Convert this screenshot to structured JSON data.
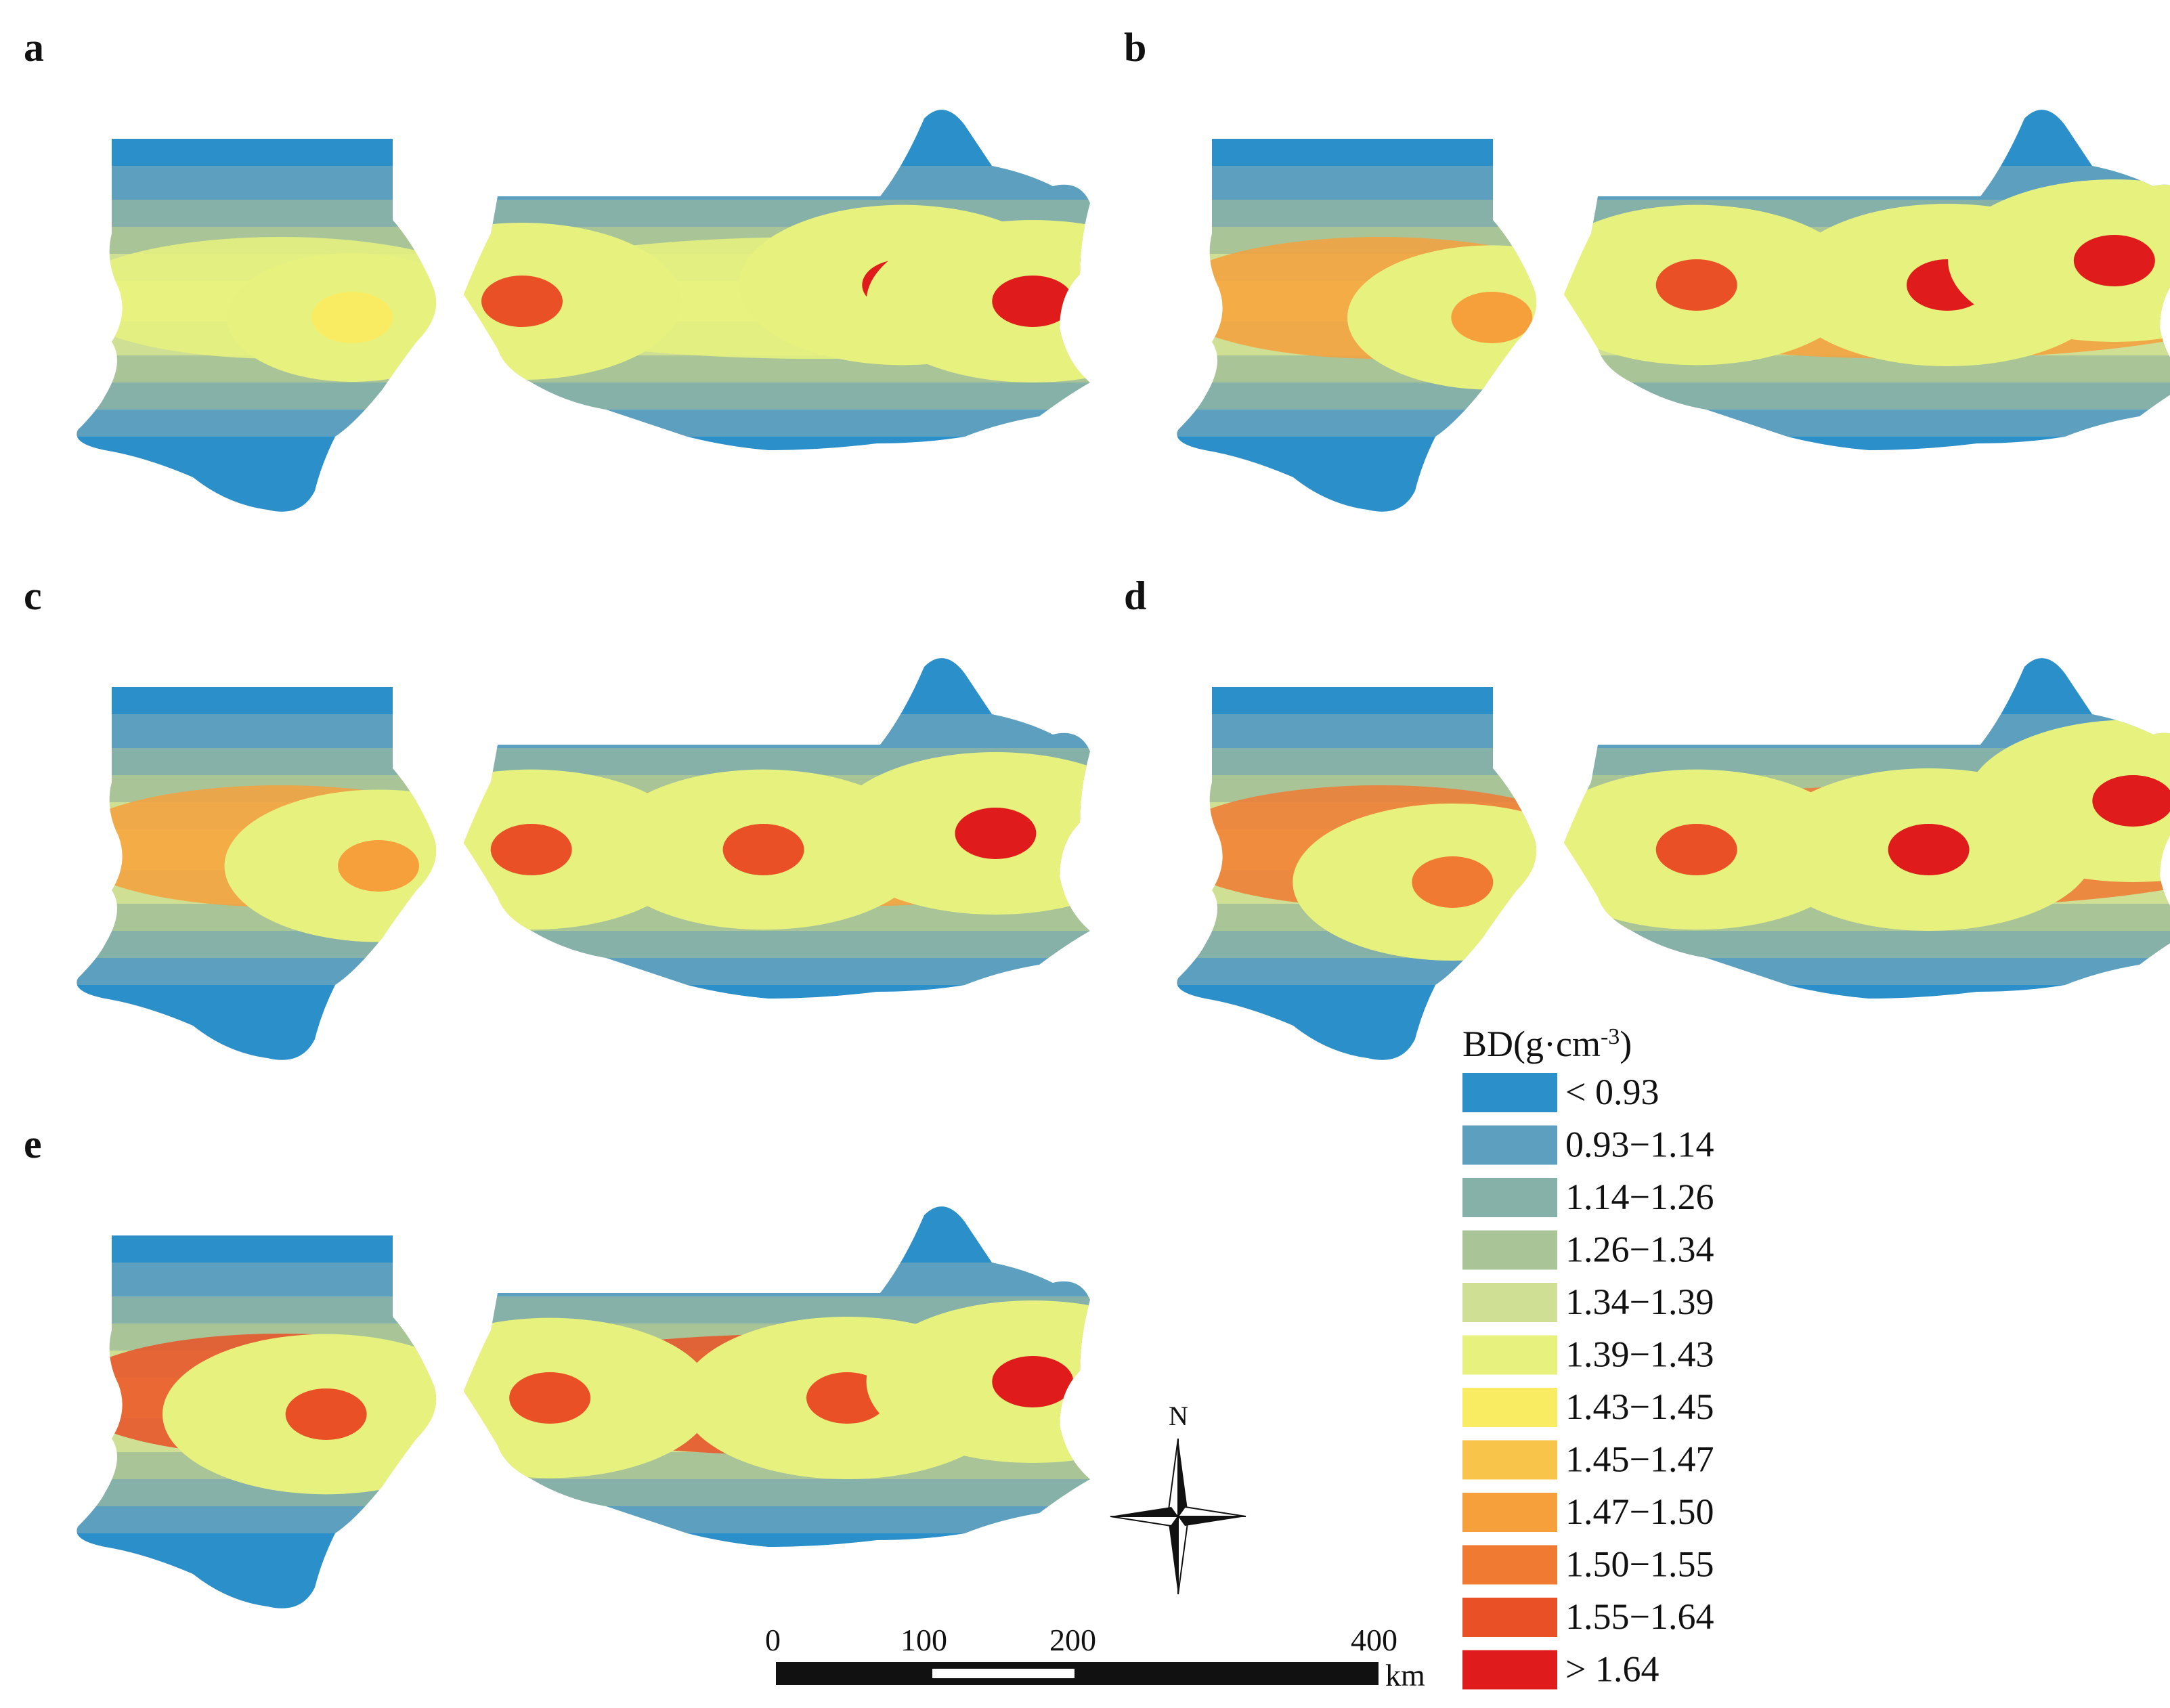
{
  "panels": [
    {
      "label": "a",
      "hotspots": [
        {
          "rx": 0.37,
          "ry": 0.2,
          "bin": 9,
          "core": 11
        },
        {
          "rx": 0.78,
          "ry": 0.18,
          "bin": 10,
          "core": 12
        },
        {
          "rx": 0.92,
          "ry": 0.2,
          "bin": 11,
          "core": 12
        },
        {
          "rx": 0.22,
          "ry": 0.22,
          "bin": 6,
          "core": 7
        }
      ],
      "band": 6
    },
    {
      "label": "b",
      "hotspots": [
        {
          "rx": 0.45,
          "ry": 0.18,
          "bin": 10,
          "core": 11
        },
        {
          "rx": 0.72,
          "ry": 0.18,
          "bin": 11,
          "core": 12
        },
        {
          "rx": 0.9,
          "ry": 0.15,
          "bin": 11,
          "core": 12
        },
        {
          "rx": 0.25,
          "ry": 0.22,
          "bin": 7,
          "core": 9
        }
      ],
      "band": 9
    },
    {
      "label": "c",
      "hotspots": [
        {
          "rx": 0.38,
          "ry": 0.2,
          "bin": 10,
          "core": 11
        },
        {
          "rx": 0.63,
          "ry": 0.2,
          "bin": 10,
          "core": 11
        },
        {
          "rx": 0.88,
          "ry": 0.18,
          "bin": 11,
          "core": 12
        },
        {
          "rx": 0.24,
          "ry": 0.22,
          "bin": 8,
          "core": 9
        }
      ],
      "band": 9
    },
    {
      "label": "d",
      "hotspots": [
        {
          "rx": 0.45,
          "ry": 0.2,
          "bin": 10,
          "core": 11
        },
        {
          "rx": 0.7,
          "ry": 0.2,
          "bin": 11,
          "core": 12
        },
        {
          "rx": 0.92,
          "ry": 0.14,
          "bin": 11,
          "core": 12
        },
        {
          "rx": 0.22,
          "ry": 0.24,
          "bin": 9,
          "core": 10
        }
      ],
      "band": 10
    },
    {
      "label": "e",
      "hotspots": [
        {
          "rx": 0.4,
          "ry": 0.2,
          "bin": 10,
          "core": 11
        },
        {
          "rx": 0.72,
          "ry": 0.2,
          "bin": 11,
          "core": 11
        },
        {
          "rx": 0.92,
          "ry": 0.18,
          "bin": 11,
          "core": 12
        },
        {
          "rx": 0.2,
          "ry": 0.22,
          "bin": 10,
          "core": 11
        }
      ],
      "band": 11
    }
  ],
  "legend": {
    "title_prefix": "BD(g·cm",
    "title_exp": "-3",
    "title_suffix": ")",
    "items": [
      {
        "label": "< 0.93",
        "color": "#2b8fc9"
      },
      {
        "label": "0.93−1.14",
        "color": "#5c9fbf"
      },
      {
        "label": "1.14−1.26",
        "color": "#86b1a8"
      },
      {
        "label": "1.26−1.34",
        "color": "#a9c597"
      },
      {
        "label": "1.34−1.39",
        "color": "#cfdf93"
      },
      {
        "label": "1.39−1.43",
        "color": "#e7f27e"
      },
      {
        "label": "1.43−1.45",
        "color": "#f9ec63"
      },
      {
        "label": "1.45−1.47",
        "color": "#f8c44a"
      },
      {
        "label": "1.47−1.50",
        "color": "#f6a03c"
      },
      {
        "label": "1.50−1.55",
        "color": "#f07a32"
      },
      {
        "label": "1.55−1.64",
        "color": "#ea5026"
      },
      {
        "label": "> 1.64",
        "color": "#e01b1b"
      }
    ]
  },
  "scale_bar": {
    "ticks": [
      "0",
      "100",
      "200",
      "400"
    ],
    "unit": "km"
  },
  "north_arrow": {
    "label": "N"
  }
}
